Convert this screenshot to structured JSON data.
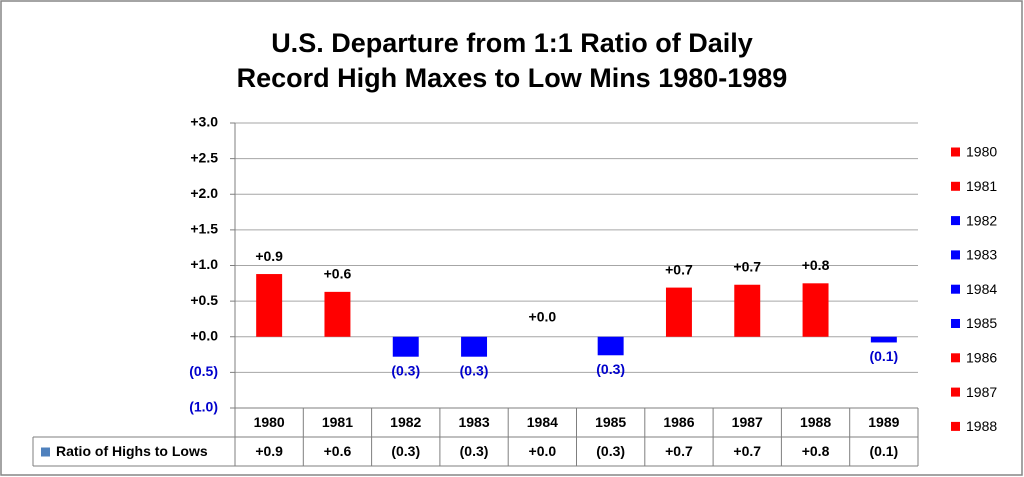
{
  "chart_data": {
    "type": "bar",
    "title_lines": [
      "U.S. Departure from 1:1 Ratio of Daily",
      "Record High Maxes to Low Mins 1980-1989"
    ],
    "categories": [
      "1980",
      "1981",
      "1982",
      "1983",
      "1984",
      "1985",
      "1986",
      "1987",
      "1988",
      "1989"
    ],
    "series": [
      {
        "name": "Ratio of Highs to Lows",
        "color": "#4f81bd",
        "colors": [
          "#ff0000",
          "#ff0000",
          "#0000ff",
          "#0000ff",
          "#0000ff",
          "#0000ff",
          "#ff0000",
          "#ff0000",
          "#ff0000",
          "#0000ff"
        ],
        "values": [
          0.88,
          0.63,
          -0.28,
          -0.28,
          0.0,
          -0.26,
          0.69,
          0.73,
          0.75,
          -0.08
        ],
        "value_labels": [
          "+0.9",
          "+0.6",
          "(0.3)",
          "(0.3)",
          "+0.0",
          "(0.3)",
          "+0.7",
          "+0.7",
          "+0.8",
          "(0.1)"
        ]
      }
    ],
    "legend_entries": 9,
    "ylim": [
      -1.0,
      3.0
    ],
    "yticks": [
      {
        "value": 3.0,
        "label": "+3.0"
      },
      {
        "value": 2.5,
        "label": "+2.5"
      },
      {
        "value": 2.0,
        "label": "+2.0"
      },
      {
        "value": 1.5,
        "label": "+1.5"
      },
      {
        "value": 1.0,
        "label": "+1.0"
      },
      {
        "value": 0.5,
        "label": "+0.5"
      },
      {
        "value": 0.0,
        "label": "+0.0"
      },
      {
        "value": -0.5,
        "label": "(0.5)"
      },
      {
        "value": -1.0,
        "label": "(1.0)"
      }
    ],
    "grid": true,
    "data_table": true
  }
}
